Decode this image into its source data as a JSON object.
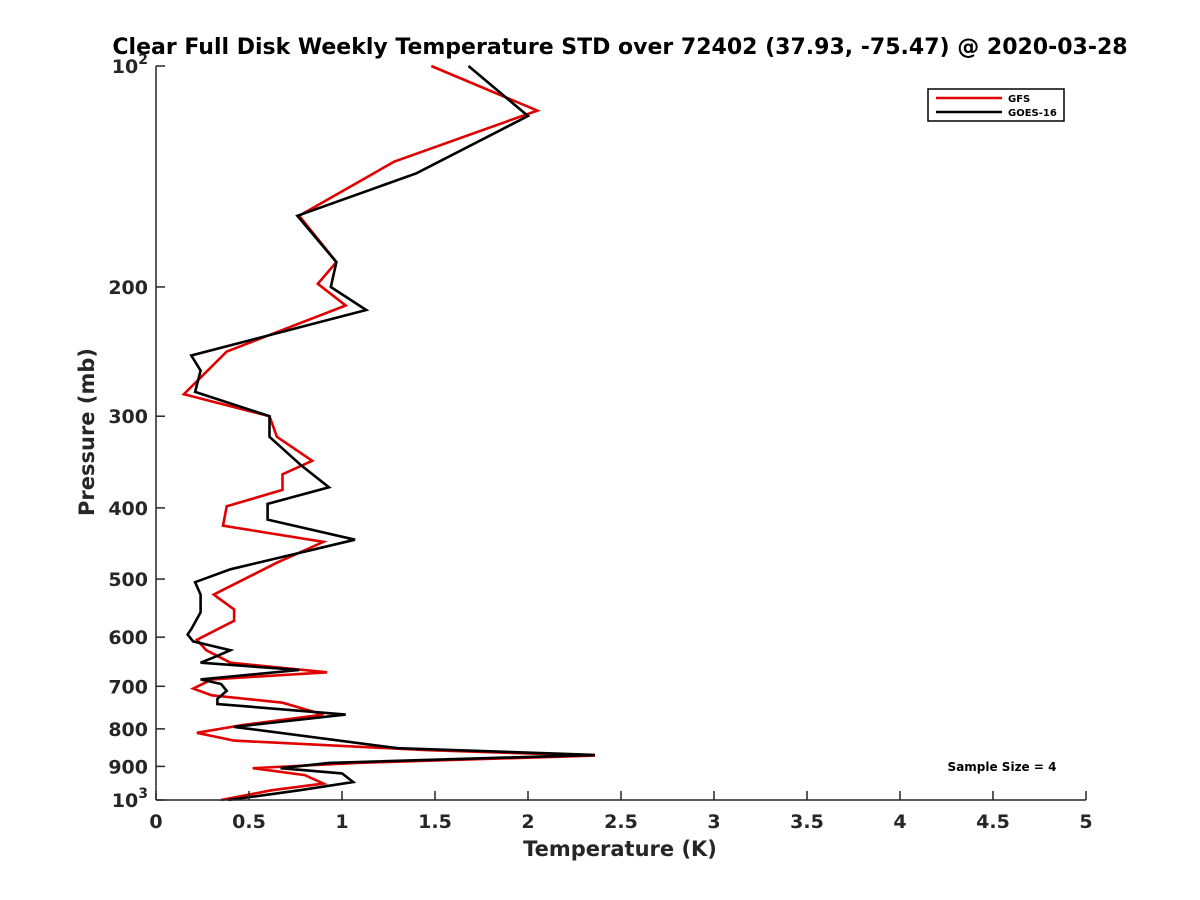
{
  "chart_data": {
    "type": "line",
    "title": "Clear Full Disk Weekly Temperature STD over 72402 (37.93, -75.47) @ 2020-03-28",
    "xlabel": "Temperature (K)",
    "ylabel": "Pressure (mb)",
    "xlim": [
      0,
      5
    ],
    "ylim": [
      100,
      1000
    ],
    "yscale": "log",
    "y_reversed": true,
    "x_ticks": [
      "0",
      "0.5",
      "1",
      "1.5",
      "2",
      "2.5",
      "3",
      "3.5",
      "4",
      "4.5",
      "5"
    ],
    "y_ticks": [
      {
        "value": 200,
        "label": "200"
      },
      {
        "value": 300,
        "label": "300"
      },
      {
        "value": 400,
        "label": "400"
      },
      {
        "value": 500,
        "label": "500"
      },
      {
        "value": 600,
        "label": "600"
      },
      {
        "value": 700,
        "label": "700"
      },
      {
        "value": 800,
        "label": "800"
      },
      {
        "value": 900,
        "label": "900"
      }
    ],
    "y_top_label": {
      "base": "10",
      "exp": "2"
    },
    "y_bottom_label": {
      "base": "10",
      "exp": "3"
    },
    "legend_position": "top-right",
    "annotation": "Sample Size = 4",
    "series": [
      {
        "name": "GFS",
        "color": "#e00000",
        "points": [
          [
            1.48,
            100
          ],
          [
            2.05,
            115
          ],
          [
            1.28,
            135
          ],
          [
            0.77,
            160
          ],
          [
            0.97,
            185
          ],
          [
            0.87,
            198
          ],
          [
            1.02,
            212
          ],
          [
            0.38,
            245
          ],
          [
            0.15,
            280
          ],
          [
            0.61,
            300
          ],
          [
            0.65,
            320
          ],
          [
            0.84,
            345
          ],
          [
            0.68,
            360
          ],
          [
            0.68,
            378
          ],
          [
            0.38,
            398
          ],
          [
            0.36,
            423
          ],
          [
            0.9,
            445
          ],
          [
            0.65,
            475
          ],
          [
            0.31,
            525
          ],
          [
            0.42,
            550
          ],
          [
            0.42,
            570
          ],
          [
            0.22,
            605
          ],
          [
            0.27,
            625
          ],
          [
            0.4,
            650
          ],
          [
            0.92,
            670
          ],
          [
            0.3,
            685
          ],
          [
            0.2,
            705
          ],
          [
            0.3,
            720
          ],
          [
            0.68,
            737
          ],
          [
            0.9,
            765
          ],
          [
            0.47,
            790
          ],
          [
            0.22,
            810
          ],
          [
            0.42,
            830
          ],
          [
            1.45,
            855
          ],
          [
            2.36,
            870
          ],
          [
            1.08,
            890
          ],
          [
            0.52,
            905
          ],
          [
            0.8,
            925
          ],
          [
            0.9,
            950
          ],
          [
            0.62,
            970
          ],
          [
            0.35,
            1000
          ]
        ]
      },
      {
        "name": "GOES-16",
        "color": "#000000",
        "points": [
          [
            1.68,
            100
          ],
          [
            2.0,
            117
          ],
          [
            1.4,
            140
          ],
          [
            0.76,
            160
          ],
          [
            0.97,
            185
          ],
          [
            0.94,
            200
          ],
          [
            1.13,
            215
          ],
          [
            0.19,
            248
          ],
          [
            0.24,
            260
          ],
          [
            0.21,
            278
          ],
          [
            0.61,
            300
          ],
          [
            0.61,
            320
          ],
          [
            0.78,
            350
          ],
          [
            0.93,
            375
          ],
          [
            0.6,
            395
          ],
          [
            0.6,
            415
          ],
          [
            1.07,
            442
          ],
          [
            0.4,
            485
          ],
          [
            0.21,
            505
          ],
          [
            0.24,
            525
          ],
          [
            0.24,
            555
          ],
          [
            0.19,
            585
          ],
          [
            0.17,
            595
          ],
          [
            0.2,
            608
          ],
          [
            0.4,
            625
          ],
          [
            0.32,
            638
          ],
          [
            0.24,
            650
          ],
          [
            0.77,
            665
          ],
          [
            0.24,
            685
          ],
          [
            0.35,
            695
          ],
          [
            0.38,
            710
          ],
          [
            0.33,
            728
          ],
          [
            0.33,
            740
          ],
          [
            1.02,
            765
          ],
          [
            0.42,
            795
          ],
          [
            1.3,
            850
          ],
          [
            2.36,
            868
          ],
          [
            0.93,
            890
          ],
          [
            0.67,
            905
          ],
          [
            1.0,
            920
          ],
          [
            1.06,
            945
          ],
          [
            0.77,
            970
          ],
          [
            0.39,
            1000
          ]
        ]
      }
    ]
  }
}
